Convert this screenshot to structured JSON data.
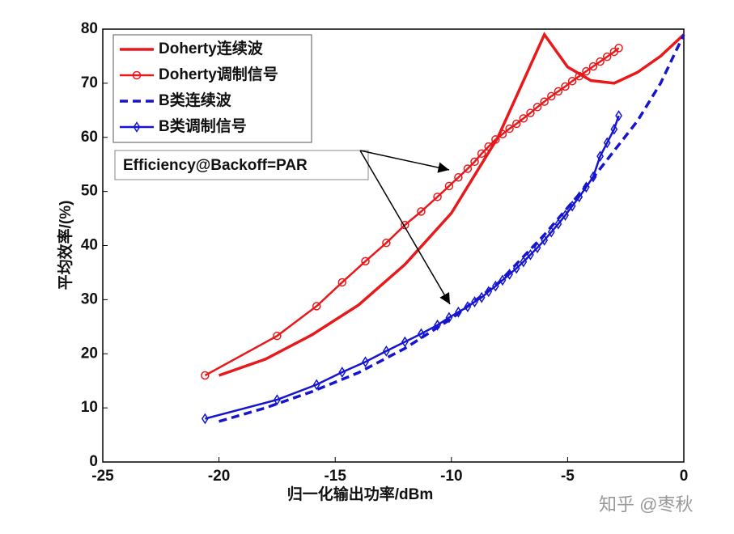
{
  "chart_data": {
    "type": "line",
    "xlabel": "归一化输出功率/dBm",
    "ylabel": "平均效率/(%)",
    "xlim": [
      -25,
      0
    ],
    "ylim": [
      0,
      80
    ],
    "xticks": [
      -25,
      -20,
      -15,
      -10,
      -5,
      0
    ],
    "yticks": [
      0,
      10,
      20,
      30,
      40,
      50,
      60,
      70,
      80
    ],
    "grid": false,
    "legend": "upper left",
    "annotation": "Efficiency@Backoff=PAR",
    "watermark": "知乎 @枣秋",
    "series": [
      {
        "name": "Doherty连续波",
        "color": "#e8191b",
        "style": "solid",
        "marker": null,
        "x": [
          -20,
          -18,
          -16,
          -14,
          -12,
          -10,
          -8,
          -7,
          -6,
          -5,
          -4,
          -3,
          -2,
          -1,
          0
        ],
        "values": [
          16,
          19,
          23.5,
          29,
          36.5,
          46,
          60,
          69.5,
          79,
          73,
          70.5,
          70,
          72,
          75,
          79
        ]
      },
      {
        "name": "Doherty调制信号",
        "color": "#e8191b",
        "style": "solid",
        "marker": "o",
        "x": [
          -20.6,
          -17.5,
          -15.8,
          -14.7,
          -13.7,
          -12.8,
          -12,
          -11.3,
          -10.6,
          -10.1,
          -9.7,
          -9.3,
          -9,
          -8.7,
          -8.4,
          -8.1,
          -7.8,
          -7.5,
          -7.2,
          -6.9,
          -6.6,
          -6.3,
          -6,
          -5.7,
          -5.4,
          -5.1,
          -4.8,
          -4.5,
          -4.2,
          -3.9,
          -3.6,
          -3.3,
          -3,
          -2.8
        ],
        "values": [
          16,
          23.3,
          28.8,
          33.2,
          37.1,
          40.5,
          43.8,
          46.3,
          49,
          51,
          52.6,
          54.2,
          55.5,
          57,
          58.3,
          59.6,
          60.6,
          61.6,
          62.5,
          63.5,
          64.5,
          65.6,
          66.6,
          67.6,
          68.5,
          69.4,
          70.4,
          71.3,
          72.2,
          73.1,
          74,
          74.9,
          75.8,
          76.5
        ]
      },
      {
        "name": "B类连续波",
        "color": "#1515d0",
        "style": "dashed",
        "marker": null,
        "x": [
          -20,
          -18,
          -16,
          -14,
          -12,
          -10,
          -8,
          -6,
          -4,
          -2,
          -1,
          0
        ],
        "values": [
          7.5,
          10,
          13,
          16.5,
          21,
          26.5,
          33,
          42,
          52,
          63,
          70,
          79
        ]
      },
      {
        "name": "B类调制信号",
        "color": "#1515d0",
        "style": "solid",
        "marker": "d",
        "x": [
          -20.6,
          -17.5,
          -15.8,
          -14.7,
          -13.7,
          -12.8,
          -12,
          -11.3,
          -10.6,
          -10.1,
          -9.7,
          -9.3,
          -9,
          -8.7,
          -8.4,
          -8.1,
          -7.8,
          -7.5,
          -7.2,
          -6.9,
          -6.6,
          -6.3,
          -6,
          -5.7,
          -5.4,
          -5.1,
          -4.8,
          -4.5,
          -4.2,
          -3.9,
          -3.6,
          -3.3,
          -3,
          -2.8
        ],
        "values": [
          8,
          11.5,
          14.3,
          16.6,
          18.5,
          20.5,
          22.2,
          23.7,
          25.3,
          26.7,
          27.7,
          28.7,
          29.6,
          30.4,
          31.5,
          32.5,
          33.6,
          34.7,
          35.8,
          37,
          38.3,
          39.6,
          41,
          42.5,
          44,
          45.6,
          47.3,
          49,
          50.8,
          52.7,
          56.5,
          59,
          61.5,
          64
        ]
      }
    ]
  }
}
